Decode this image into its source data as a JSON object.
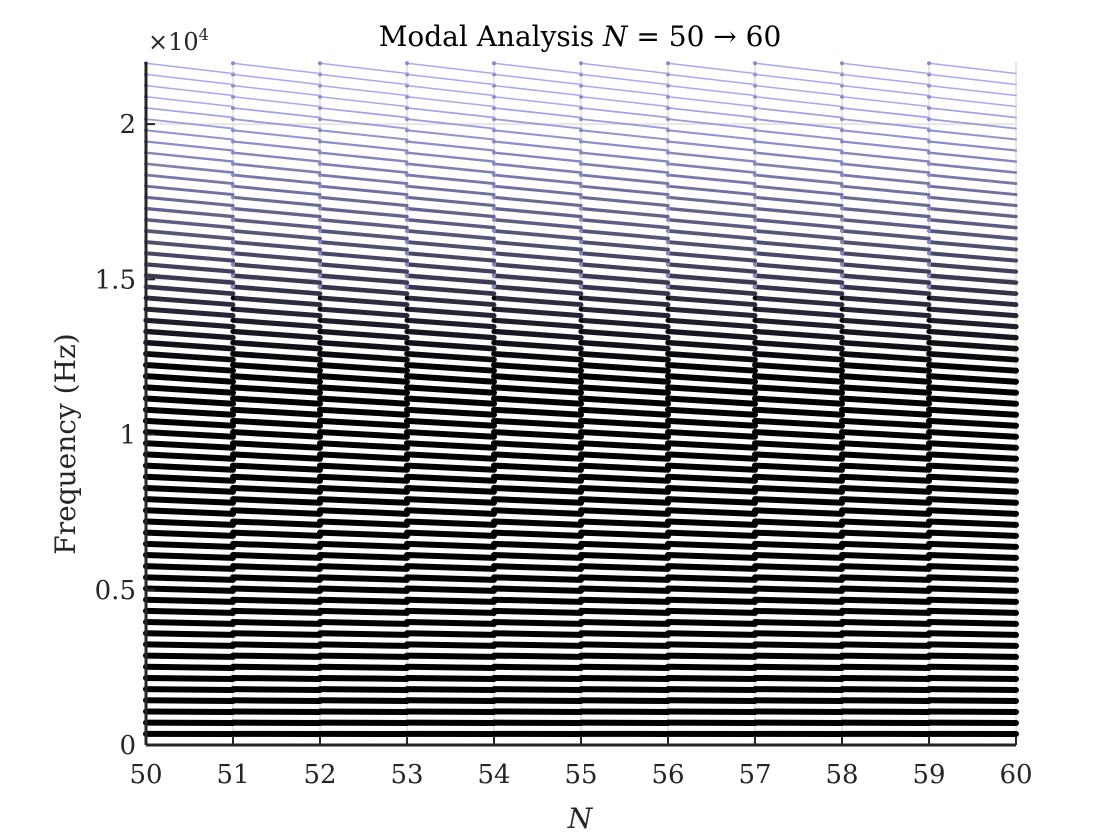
{
  "chart_data": {
    "type": "line",
    "title": {
      "prefix": "Modal Analysis ",
      "var": "N",
      "relation": " = 50 → 60"
    },
    "xlabel": "N",
    "ylabel": "Frequency (Hz)",
    "xlim": [
      50,
      60
    ],
    "ylim": [
      0,
      22000
    ],
    "y_scale_exponent": "×10",
    "y_scale_power": "4",
    "xticks": [
      50,
      51,
      52,
      53,
      54,
      55,
      56,
      57,
      58,
      59,
      60
    ],
    "xtick_labels": [
      "50",
      "51",
      "52",
      "53",
      "54",
      "55",
      "56",
      "57",
      "58",
      "59",
      "60"
    ],
    "yticks": [
      0,
      5000,
      10000,
      15000,
      20000
    ],
    "ytick_labels": [
      "0",
      "0.5",
      "1",
      "1.5",
      "2"
    ],
    "grid": true,
    "legend": "none",
    "mode_count": 61,
    "mode_spacing_hz": 360,
    "mode_offset_hz": 360,
    "segments_per_unit": 1,
    "max_drift_hz_per_unit": 330,
    "colors": {
      "low_mode": "#000000",
      "high_mode": "#a9a9f0",
      "grid": "#e6e6e6",
      "axis": "#262626"
    }
  }
}
